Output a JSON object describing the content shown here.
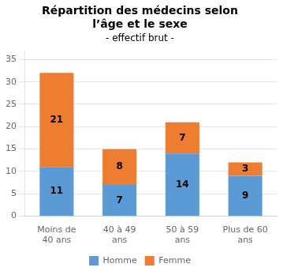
{
  "chart_data": {
    "type": "bar",
    "title": "Répartition des médecins selon\nl’âge et le sexe",
    "subtitle": "- effectif brut -",
    "categories": [
      "Moins de\n40 ans",
      "40 à 49\nans",
      "50 à 59\nans",
      "Plus de 60\nans"
    ],
    "series": [
      {
        "name": "Homme",
        "color": "#5B9BD5",
        "values": [
          11,
          7,
          14,
          9
        ]
      },
      {
        "name": "Femme",
        "color": "#ED7D31",
        "values": [
          21,
          8,
          7,
          3
        ]
      }
    ],
    "stacked": true,
    "data_labels": true,
    "ylim": [
      0,
      37
    ],
    "yticks": [
      0,
      5,
      10,
      15,
      20,
      25,
      30,
      35
    ],
    "grid": true,
    "legend": "bottom"
  }
}
